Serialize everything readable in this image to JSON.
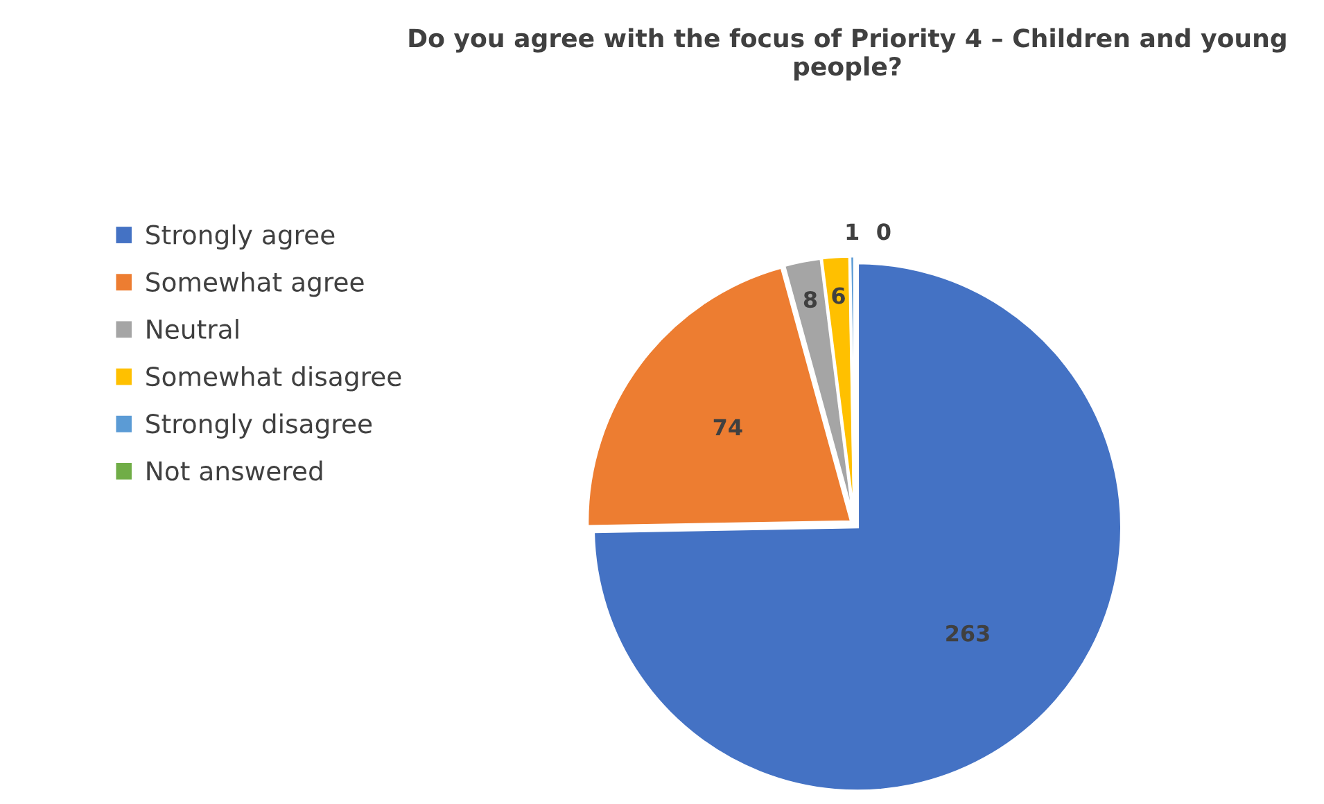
{
  "chart_data": {
    "type": "pie",
    "title": "Do you agree with the focus of Priority 4 – Children and young people?",
    "categories": [
      "Strongly agree",
      "Somewhat agree",
      "Neutral",
      "Somewhat disagree",
      "Strongly disagree",
      "Not answered"
    ],
    "values": [
      263,
      74,
      8,
      6,
      1,
      0
    ],
    "colors": [
      "#4472c4",
      "#ed7d31",
      "#a5a5a5",
      "#ffc000",
      "#5b9bd5",
      "#70ad47"
    ],
    "value_labels": [
      "263",
      "74",
      "8",
      "6",
      "1",
      "0"
    ],
    "legend": "left"
  }
}
